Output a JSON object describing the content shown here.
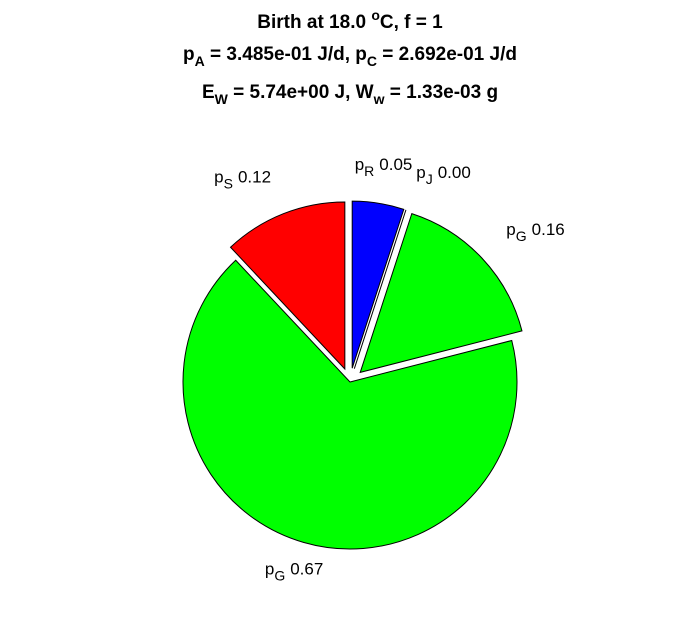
{
  "chart_data": {
    "type": "pie",
    "title": [
      [
        {
          "text": "Birth at 18.0 "
        },
        {
          "text": "o",
          "shift": "sup"
        },
        {
          "text": "C, f = 1"
        }
      ],
      [
        {
          "text": "p"
        },
        {
          "text": "A",
          "shift": "sub"
        },
        {
          "text": " = 3.485e-01 J/d, p"
        },
        {
          "text": "C",
          "shift": "sub"
        },
        {
          "text": " = 2.692e-01 J/d"
        }
      ],
      [
        {
          "text": "E"
        },
        {
          "text": "W",
          "shift": "sub"
        },
        {
          "text": " = 5.74e+00 J, W"
        },
        {
          "text": "w",
          "shift": "sub"
        },
        {
          "text": " = 1.33e-03 g"
        }
      ]
    ],
    "categories": [
      {
        "symbol": "p",
        "subscript": "R"
      },
      {
        "symbol": "p",
        "subscript": "J"
      },
      {
        "symbol": "p",
        "subscript": "G"
      },
      {
        "symbol": "p",
        "subscript": "G"
      },
      {
        "symbol": "p",
        "subscript": "S"
      }
    ],
    "values": [
      0.05,
      0.0,
      0.16,
      0.67,
      0.12
    ],
    "value_labels": [
      "0.05",
      "0.00",
      "0.16",
      "0.67",
      "0.12"
    ],
    "colors": [
      "#0000ff",
      "#3c1060",
      "#00ff00",
      "#00ff00",
      "#ff0000"
    ],
    "explode": [
      true,
      true,
      true,
      false,
      true
    ]
  }
}
